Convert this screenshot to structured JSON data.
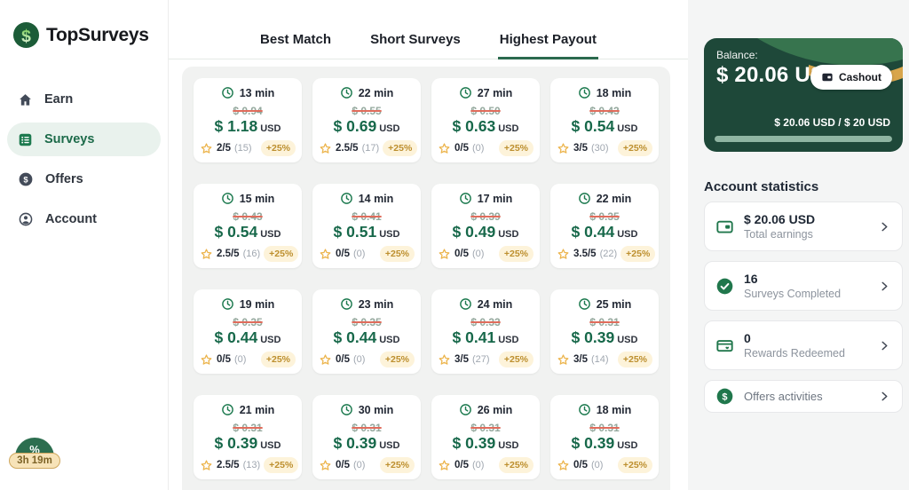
{
  "app": {
    "title": "TopSurveys",
    "logo_icon": "dollar-coin-icon"
  },
  "sidebar": {
    "items": [
      {
        "label": "Earn",
        "icon": "home-icon",
        "active": false
      },
      {
        "label": "Surveys",
        "icon": "survey-list-icon",
        "active": true
      },
      {
        "label": "Offers",
        "icon": "dollar-circle-icon",
        "active": false
      },
      {
        "label": "Account",
        "icon": "user-circle-icon",
        "active": false
      }
    ]
  },
  "promo": {
    "icon": "percent-icon",
    "timer": "3h 19m"
  },
  "tabs": [
    {
      "label": "Best Match",
      "active": false
    },
    {
      "label": "Short Surveys",
      "active": false
    },
    {
      "label": "Highest Payout",
      "active": true
    }
  ],
  "survey_grid": {
    "cards": [
      {
        "time": "13 min",
        "old_price": "$ 0.94",
        "price": "$ 1.18",
        "currency": "USD",
        "rating": "2/5",
        "reviews": "(15)",
        "bonus": "+25%"
      },
      {
        "time": "22 min",
        "old_price": "$ 0.55",
        "price": "$ 0.69",
        "currency": "USD",
        "rating": "2.5/5",
        "reviews": "(17)",
        "bonus": "+25%"
      },
      {
        "time": "27 min",
        "old_price": "$ 0.50",
        "price": "$ 0.63",
        "currency": "USD",
        "rating": "0/5",
        "reviews": "(0)",
        "bonus": "+25%"
      },
      {
        "time": "18 min",
        "old_price": "$ 0.43",
        "price": "$ 0.54",
        "currency": "USD",
        "rating": "3/5",
        "reviews": "(30)",
        "bonus": "+25%"
      },
      {
        "time": "15 min",
        "old_price": "$ 0.43",
        "price": "$ 0.54",
        "currency": "USD",
        "rating": "2.5/5",
        "reviews": "(16)",
        "bonus": "+25%"
      },
      {
        "time": "14 min",
        "old_price": "$ 0.41",
        "price": "$ 0.51",
        "currency": "USD",
        "rating": "0/5",
        "reviews": "(0)",
        "bonus": "+25%"
      },
      {
        "time": "17 min",
        "old_price": "$ 0.39",
        "price": "$ 0.49",
        "currency": "USD",
        "rating": "0/5",
        "reviews": "(0)",
        "bonus": "+25%"
      },
      {
        "time": "22 min",
        "old_price": "$ 0.35",
        "price": "$ 0.44",
        "currency": "USD",
        "rating": "3.5/5",
        "reviews": "(22)",
        "bonus": "+25%"
      },
      {
        "time": "19 min",
        "old_price": "$ 0.35",
        "price": "$ 0.44",
        "currency": "USD",
        "rating": "0/5",
        "reviews": "(0)",
        "bonus": "+25%"
      },
      {
        "time": "23 min",
        "old_price": "$ 0.35",
        "price": "$ 0.44",
        "currency": "USD",
        "rating": "0/5",
        "reviews": "(0)",
        "bonus": "+25%"
      },
      {
        "time": "24 min",
        "old_price": "$ 0.33",
        "price": "$ 0.41",
        "currency": "USD",
        "rating": "3/5",
        "reviews": "(27)",
        "bonus": "+25%"
      },
      {
        "time": "25 min",
        "old_price": "$ 0.31",
        "price": "$ 0.39",
        "currency": "USD",
        "rating": "3/5",
        "reviews": "(14)",
        "bonus": "+25%"
      },
      {
        "time": "21 min",
        "old_price": "$ 0.31",
        "price": "$ 0.39",
        "currency": "USD",
        "rating": "2.5/5",
        "reviews": "(13)",
        "bonus": "+25%"
      },
      {
        "time": "30 min",
        "old_price": "$ 0.31",
        "price": "$ 0.39",
        "currency": "USD",
        "rating": "0/5",
        "reviews": "(0)",
        "bonus": "+25%"
      },
      {
        "time": "26 min",
        "old_price": "$ 0.31",
        "price": "$ 0.39",
        "currency": "USD",
        "rating": "0/5",
        "reviews": "(0)",
        "bonus": "+25%"
      },
      {
        "time": "18 min",
        "old_price": "$ 0.31",
        "price": "$ 0.39",
        "currency": "USD",
        "rating": "0/5",
        "reviews": "(0)",
        "bonus": "+25%"
      }
    ]
  },
  "balance_card": {
    "label": "Balance:",
    "amount": "$ 20.06 USD",
    "cashout_label": "Cashout",
    "progress_text": "$ 20.06 USD / $ 20 USD",
    "progress_percent": 100
  },
  "account_statistics": {
    "title": "Account statistics",
    "items": [
      {
        "value": "$ 20.06 USD",
        "label": "Total earnings",
        "icon": "wallet-icon"
      },
      {
        "value": "16",
        "label": "Surveys Completed",
        "icon": "check-circle-icon"
      },
      {
        "value": "0",
        "label": "Rewards Redeemed",
        "icon": "gift-card-icon"
      },
      {
        "value": "",
        "label": "Offers activities",
        "icon": "dollar-coin-icon"
      }
    ]
  },
  "colors": {
    "brand_green": "#1d7a4f",
    "price_green": "#17684a",
    "balance_bg": "#1e4839",
    "deco_band_green": "#37744e",
    "deco_band_gold": "#d8a54b",
    "progress_sage": "#8fb5a2",
    "active_pill_bg": "#e9f2ed",
    "badge_bg": "#fdf3da",
    "badge_text": "#bd8f2e",
    "old_price_text": "#94a89d",
    "strike_red": "#e06c5c",
    "star_gold": "#ecb44c",
    "panel_gray": "#f1f2f1"
  }
}
